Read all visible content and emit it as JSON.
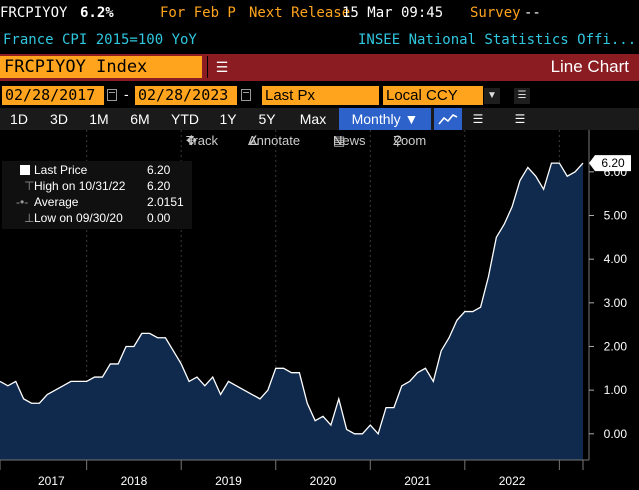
{
  "header": {
    "ticker": "FRCPIYOY",
    "value": "6.2%",
    "period": "For Feb P",
    "next_release_label": "Next Release",
    "next_release_date": "15 Mar 09:45",
    "survey_label": "Survey",
    "survey_value": "--",
    "description": "France CPI 2015=100 YoY",
    "source": "INSEE National Statistics Offi..."
  },
  "security": {
    "field_value": "FRCPIYOY Index",
    "chart_type": "Line Chart"
  },
  "controls": {
    "start_date": "02/28/2017",
    "end_date": "02/28/2023",
    "field": "Last Px",
    "currency": "Local CCY",
    "periods": [
      "1D",
      "3D",
      "1M",
      "6M",
      "YTD",
      "1Y",
      "5Y",
      "Max"
    ],
    "frequency": "Monthly",
    "track_label": "Track",
    "annotate_label": "Annotate",
    "news_label": "News",
    "zoom_label": "Zoom"
  },
  "legend": {
    "last_price_label": "Last Price",
    "last_price_value": "6.20",
    "high_label": "High on 10/31/22",
    "high_value": "6.20",
    "average_label": "Average",
    "average_value": "2.0151",
    "low_label": "Low on 09/30/20",
    "low_value": "0.00"
  },
  "last_value_tag": "6.20",
  "colors": {
    "accent_orange": "#ffa41c",
    "header_cyan": "#2fc7df",
    "bar_red": "#8a1c22",
    "area_fill": "#0f2a4d",
    "selected_blue": "#2c62c9"
  },
  "chart_data": {
    "type": "area",
    "x_ticks": [
      "2017",
      "2018",
      "2019",
      "2020",
      "2021",
      "2022"
    ],
    "y_ticks": [
      "0.00",
      "1.00",
      "2.00",
      "3.00",
      "4.00",
      "5.00",
      "6.00"
    ],
    "ylim": [
      -0.6,
      6.5
    ],
    "x_start": "2017-02",
    "x_end": "2023-02",
    "values": [
      1.2,
      1.1,
      1.2,
      0.8,
      0.7,
      0.7,
      0.9,
      1.0,
      1.1,
      1.2,
      1.2,
      1.2,
      1.3,
      1.3,
      1.6,
      1.6,
      2.0,
      2.0,
      2.3,
      2.3,
      2.2,
      2.2,
      1.9,
      1.6,
      1.2,
      1.3,
      1.1,
      1.3,
      0.9,
      1.2,
      1.1,
      1.0,
      0.9,
      0.8,
      1.0,
      1.5,
      1.5,
      1.4,
      1.4,
      0.7,
      0.3,
      0.4,
      0.2,
      0.8,
      0.1,
      0.0,
      0.0,
      0.2,
      0.0,
      0.6,
      0.6,
      1.1,
      1.2,
      1.4,
      1.5,
      1.2,
      1.9,
      2.2,
      2.6,
      2.8,
      2.8,
      2.9,
      3.6,
      4.5,
      4.8,
      5.2,
      5.8,
      6.1,
      5.9,
      5.6,
      6.2,
      6.2,
      5.9,
      6.0,
      6.2
    ]
  }
}
